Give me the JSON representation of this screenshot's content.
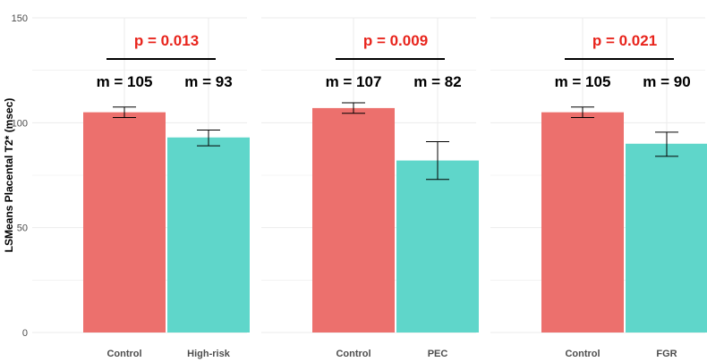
{
  "colors": {
    "control": "#ec706d",
    "case": "#5fd6ca",
    "pvalue": "#e8241c",
    "grid": "#ebebeb"
  },
  "chart_data": {
    "type": "bar",
    "ylabel": "LSMeans Placental T2* (msec)",
    "ylim": [
      0,
      150
    ],
    "yticks": [
      0,
      50,
      100,
      150
    ],
    "grid": true,
    "panels": [
      {
        "categories": [
          "Control",
          "High-risk"
        ],
        "values": [
          105,
          93
        ],
        "errors": [
          [
            102.5,
            107.5
          ],
          [
            89,
            96.5
          ]
        ],
        "mean_labels": [
          "m = 105",
          "m = 93"
        ],
        "p_value": "p = 0.013"
      },
      {
        "categories": [
          "Control",
          "PEC"
        ],
        "values": [
          107,
          82
        ],
        "errors": [
          [
            104.5,
            109.5
          ],
          [
            73,
            91
          ]
        ],
        "mean_labels": [
          "m = 107",
          "m = 82"
        ],
        "p_value": "p = 0.009"
      },
      {
        "categories": [
          "Control",
          "FGR"
        ],
        "values": [
          105,
          90
        ],
        "errors": [
          [
            102.5,
            107.5
          ],
          [
            84,
            95.5
          ]
        ],
        "mean_labels": [
          "m = 105",
          "m = 90"
        ],
        "p_value": "p = 0.021"
      }
    ]
  }
}
